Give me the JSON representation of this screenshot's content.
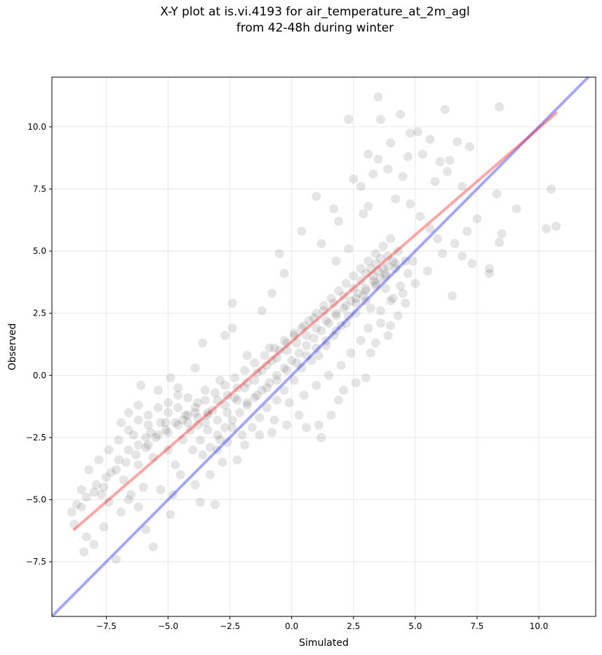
{
  "chart_data": {
    "type": "scatter",
    "title_lines": [
      "X-Y plot at is.vi.4193 for air_temperature_at_2m_agl",
      "from 42-48h during winter"
    ],
    "xlabel": "Simulated",
    "ylabel": "Observed",
    "xlim": [
      -9.7,
      12.3
    ],
    "ylim": [
      -9.7,
      12.0
    ],
    "x_ticks": [
      -7.5,
      -5.0,
      -2.5,
      0.0,
      2.5,
      5.0,
      7.5,
      10.0
    ],
    "y_ticks": [
      -7.5,
      -5.0,
      -2.5,
      0.0,
      2.5,
      5.0,
      7.5,
      10.0
    ],
    "x_tick_labels": [
      "−7.5",
      "−5.0",
      "−2.5",
      "0.0",
      "2.5",
      "5.0",
      "7.5",
      "10.0"
    ],
    "y_tick_labels": [
      "−7.5",
      "−5.0",
      "−2.5",
      "0.0",
      "2.5",
      "5.0",
      "7.5",
      "10.0"
    ],
    "grid": true,
    "point_color": "#000000",
    "point_alpha": 0.1,
    "identity_line": {
      "color": "#0000ff",
      "alpha": 0.35,
      "from": [
        -9.7,
        -9.7
      ],
      "to": [
        12.3,
        12.3
      ]
    },
    "fit_line": {
      "color": "#ff0000",
      "alpha": 0.35,
      "from": [
        -8.8,
        -6.2
      ],
      "to": [
        10.7,
        10.55
      ]
    },
    "points": [
      [
        3.5,
        11.2
      ],
      [
        2.3,
        10.3
      ],
      [
        3.6,
        10.3
      ],
      [
        4.4,
        10.5
      ],
      [
        6.2,
        10.7
      ],
      [
        8.4,
        10.8
      ],
      [
        5.1,
        9.8
      ],
      [
        4.8,
        9.75
      ],
      [
        5.6,
        9.5
      ],
      [
        4.0,
        9.35
      ],
      [
        6.7,
        9.4
      ],
      [
        7.2,
        9.2
      ],
      [
        3.1,
        8.9
      ],
      [
        3.5,
        8.7
      ],
      [
        4.7,
        8.8
      ],
      [
        5.3,
        8.9
      ],
      [
        6.0,
        8.6
      ],
      [
        6.3,
        8.2
      ],
      [
        6.4,
        8.65
      ],
      [
        2.5,
        7.9
      ],
      [
        3.3,
        8.1
      ],
      [
        3.9,
        8.3
      ],
      [
        4.5,
        8.0
      ],
      [
        5.8,
        7.8
      ],
      [
        6.9,
        7.6
      ],
      [
        8.3,
        7.3
      ],
      [
        7.5,
        6.3
      ],
      [
        9.1,
        6.7
      ],
      [
        10.5,
        7.5
      ],
      [
        10.3,
        5.9
      ],
      [
        10.7,
        6.0
      ],
      [
        8.5,
        5.7
      ],
      [
        8.4,
        5.35
      ],
      [
        6.6,
        5.3
      ],
      [
        7.1,
        5.8
      ],
      [
        6.9,
        4.8
      ],
      [
        7.3,
        4.5
      ],
      [
        8.0,
        4.3
      ],
      [
        8.0,
        4.1
      ],
      [
        6.5,
        3.2
      ],
      [
        1.0,
        7.2
      ],
      [
        1.9,
        6.2
      ],
      [
        1.7,
        6.7
      ],
      [
        2.8,
        7.6
      ],
      [
        2.9,
        6.5
      ],
      [
        3.1,
        6.8
      ],
      [
        4.2,
        7.1
      ],
      [
        4.8,
        6.9
      ],
      [
        5.2,
        6.4
      ],
      [
        5.6,
        5.9
      ],
      [
        5.9,
        5.5
      ],
      [
        6.1,
        4.9
      ],
      [
        5.5,
        4.2
      ],
      [
        5.0,
        3.7
      ],
      [
        4.5,
        3.3
      ],
      [
        -1.2,
        2.6
      ],
      [
        -2.4,
        2.9
      ],
      [
        -0.5,
        4.9
      ],
      [
        -0.3,
        4.1
      ],
      [
        0.4,
        5.8
      ],
      [
        1.2,
        5.3
      ],
      [
        1.8,
        4.6
      ],
      [
        2.3,
        5.1
      ],
      [
        -0.8,
        3.3
      ],
      [
        -0.9,
        1.1
      ],
      [
        -1.8,
        0.8
      ],
      [
        -2.7,
        1.6
      ],
      [
        -2.4,
        1.9
      ],
      [
        -3.6,
        1.3
      ],
      [
        -3.9,
        0.3
      ],
      [
        -2.9,
        -0.2
      ],
      [
        -3.5,
        -0.6
      ],
      [
        -4.6,
        -0.5
      ],
      [
        -5.4,
        -0.6
      ],
      [
        -4.9,
        -0.1
      ],
      [
        -6.1,
        -0.4
      ],
      [
        -6.2,
        -1.2
      ],
      [
        -6.6,
        -1.5
      ],
      [
        -5.8,
        -2.0
      ],
      [
        -5.1,
        -1.9
      ],
      [
        -4.4,
        -2.6
      ],
      [
        -5.0,
        -3.0
      ],
      [
        -5.9,
        -2.5
      ],
      [
        -6.4,
        -2.4
      ],
      [
        -6.9,
        -1.9
      ],
      [
        -6.2,
        -3.6
      ],
      [
        -5.6,
        -3.3
      ],
      [
        -4.7,
        -3.6
      ],
      [
        -4.5,
        -4.0
      ],
      [
        -5.3,
        -4.6
      ],
      [
        -6.0,
        -4.5
      ],
      [
        -6.8,
        -4.2
      ],
      [
        -7.3,
        -3.9
      ],
      [
        -7.6,
        -4.5
      ],
      [
        -8.0,
        -4.7
      ],
      [
        -8.5,
        -4.6
      ],
      [
        -8.9,
        -5.5
      ],
      [
        -8.5,
        -5.3
      ],
      [
        -8.8,
        -6.0
      ],
      [
        -8.3,
        -6.5
      ],
      [
        -8.4,
        -7.1
      ],
      [
        -8.0,
        -6.8
      ],
      [
        -7.6,
        -6.1
      ],
      [
        -7.1,
        -7.4
      ],
      [
        -5.6,
        -6.9
      ],
      [
        -5.9,
        -6.2
      ],
      [
        -6.9,
        -5.5
      ],
      [
        -6.6,
        -5.0
      ],
      [
        -6.5,
        -4.8
      ],
      [
        -6.2,
        -5.3
      ],
      [
        -7.4,
        -5.1
      ],
      [
        -7.7,
        -4.8
      ],
      [
        -4.9,
        -5.6
      ],
      [
        -4.8,
        -4.8
      ],
      [
        -3.9,
        -4.4
      ],
      [
        -3.3,
        -4.0
      ],
      [
        -3.7,
        -5.1
      ],
      [
        -3.1,
        -5.2
      ],
      [
        -2.8,
        -3.5
      ],
      [
        -2.2,
        -3.4
      ],
      [
        -1.9,
        -2.8
      ],
      [
        -1.3,
        -2.4
      ],
      [
        -0.8,
        -2.3
      ],
      [
        -0.2,
        -2.0
      ],
      [
        0.3,
        -1.6
      ],
      [
        0.6,
        -2.1
      ],
      [
        1.1,
        -2.0
      ],
      [
        1.2,
        -2.5
      ],
      [
        1.6,
        -1.6
      ],
      [
        1.9,
        -1.0
      ],
      [
        2.1,
        -0.6
      ],
      [
        2.6,
        -0.3
      ],
      [
        3.0,
        -0.1
      ],
      [
        3.2,
        0.9
      ],
      [
        3.4,
        1.3
      ],
      [
        3.9,
        1.6
      ],
      [
        3.6,
        2.1
      ],
      [
        4.0,
        2.0
      ],
      [
        4.3,
        2.4
      ],
      [
        4.6,
        2.9
      ],
      [
        4.1,
        3.1
      ],
      [
        3.8,
        3.5
      ],
      [
        3.2,
        2.7
      ],
      [
        2.9,
        3.2
      ],
      [
        2.6,
        2.9
      ],
      [
        2.3,
        2.4
      ],
      [
        2.0,
        2.0
      ],
      [
        1.7,
        1.6
      ],
      [
        1.4,
        1.2
      ],
      [
        1.1,
        0.8
      ],
      [
        0.8,
        0.6
      ],
      [
        0.4,
        0.3
      ],
      [
        0.1,
        -0.2
      ],
      [
        -0.3,
        -0.6
      ],
      [
        -0.6,
        -1.0
      ],
      [
        -1.0,
        -1.3
      ],
      [
        -1.3,
        -1.7
      ],
      [
        -1.6,
        -2.1
      ],
      [
        -2.0,
        -2.4
      ],
      [
        -2.4,
        -2.1
      ],
      [
        -2.9,
        -2.6
      ],
      [
        -3.3,
        -2.9
      ],
      [
        -3.7,
        -2.6
      ],
      [
        -4.1,
        -2.2
      ],
      [
        -4.4,
        -1.8
      ],
      [
        -3.9,
        -1.5
      ],
      [
        -3.5,
        -1.9
      ],
      [
        -3.2,
        -1.4
      ],
      [
        -2.7,
        -1.2
      ],
      [
        -2.3,
        -0.9
      ],
      [
        -1.9,
        -0.5
      ],
      [
        -1.5,
        -0.2
      ],
      [
        -1.2,
        0.2
      ],
      [
        -0.8,
        0.6
      ],
      [
        -0.5,
        1.0
      ],
      [
        -0.2,
        1.3
      ],
      [
        0.1,
        1.6
      ],
      [
        0.4,
        1.9
      ],
      [
        0.7,
        2.2
      ],
      [
        1.0,
        2.5
      ],
      [
        1.3,
        2.8
      ],
      [
        1.6,
        3.1
      ],
      [
        1.9,
        3.4
      ],
      [
        2.2,
        3.7
      ],
      [
        2.5,
        4.0
      ],
      [
        2.8,
        4.3
      ],
      [
        3.1,
        4.6
      ],
      [
        3.4,
        4.9
      ],
      [
        3.7,
        5.2
      ],
      [
        4.0,
        5.5
      ],
      [
        4.3,
        5.0
      ],
      [
        3.9,
        4.4
      ],
      [
        3.5,
        4.2
      ],
      [
        3.3,
        3.8
      ],
      [
        3.0,
        3.5
      ],
      [
        2.7,
        3.3
      ],
      [
        2.4,
        3.0
      ],
      [
        2.1,
        2.7
      ],
      [
        1.8,
        2.4
      ],
      [
        1.5,
        2.1
      ],
      [
        1.2,
        1.8
      ],
      [
        0.9,
        1.5
      ],
      [
        0.6,
        1.2
      ],
      [
        0.3,
        0.9
      ],
      [
        0.0,
        0.6
      ],
      [
        -0.3,
        0.3
      ],
      [
        -0.6,
        0.0
      ],
      [
        -0.9,
        -0.3
      ],
      [
        -1.2,
        -0.6
      ],
      [
        -1.5,
        -0.9
      ],
      [
        -1.8,
        -1.2
      ],
      [
        -2.1,
        -1.5
      ],
      [
        -2.4,
        -1.8
      ],
      [
        -2.7,
        -2.1
      ],
      [
        -3.0,
        -2.4
      ],
      [
        -3.4,
        -2.2
      ],
      [
        -3.8,
        -2.0
      ],
      [
        -4.2,
        -1.6
      ],
      [
        -4.6,
        -1.3
      ],
      [
        -5.0,
        -1.5
      ],
      [
        -5.3,
        -1.9
      ],
      [
        -5.7,
        -2.3
      ],
      [
        -4.0,
        -3.0
      ],
      [
        -3.6,
        -3.2
      ],
      [
        -3.0,
        -3.0
      ],
      [
        -2.6,
        -2.7
      ],
      [
        -0.7,
        -1.8
      ],
      [
        -0.1,
        -1.1
      ],
      [
        0.5,
        -0.8
      ],
      [
        1.0,
        -0.4
      ],
      [
        1.5,
        0.0
      ],
      [
        2.0,
        0.4
      ],
      [
        2.4,
        0.9
      ],
      [
        2.8,
        1.4
      ],
      [
        3.1,
        1.9
      ],
      [
        3.6,
        2.6
      ],
      [
        4.0,
        3.0
      ],
      [
        4.4,
        3.6
      ],
      [
        4.7,
        4.1
      ],
      [
        4.9,
        4.6
      ],
      [
        4.2,
        4.5
      ],
      [
        3.8,
        4.1
      ],
      [
        3.4,
        3.6
      ],
      [
        3.0,
        3.0
      ],
      [
        2.6,
        2.5
      ],
      [
        2.2,
        2.1
      ],
      [
        1.8,
        1.8
      ],
      [
        1.4,
        1.4
      ],
      [
        1.0,
        1.1
      ],
      [
        0.6,
        0.8
      ],
      [
        0.2,
        0.5
      ],
      [
        -0.2,
        0.2
      ],
      [
        -0.6,
        -0.2
      ],
      [
        -1.0,
        -0.5
      ],
      [
        -1.4,
        -0.8
      ],
      [
        -1.8,
        -1.1
      ],
      [
        -2.2,
        -1.0
      ],
      [
        -2.6,
        -1.5
      ],
      [
        -3.0,
        -1.8
      ],
      [
        -3.4,
        -1.5
      ],
      [
        -3.8,
        -1.1
      ],
      [
        -4.2,
        -0.9
      ],
      [
        -4.6,
        -0.8
      ],
      [
        -5.0,
        -1.1
      ],
      [
        -5.4,
        -1.3
      ],
      [
        -5.8,
        -1.6
      ],
      [
        -6.2,
        -1.8
      ],
      [
        -6.6,
        -2.2
      ],
      [
        -7.0,
        -2.6
      ],
      [
        -7.4,
        -3.0
      ],
      [
        -7.8,
        -3.4
      ],
      [
        -8.2,
        -3.8
      ],
      [
        -7.0,
        -3.4
      ],
      [
        -6.6,
        -3.0
      ],
      [
        -6.2,
        -2.8
      ],
      [
        -5.8,
        -2.8
      ],
      [
        -5.4,
        -2.4
      ],
      [
        -5.0,
        -2.3
      ],
      [
        -4.6,
        -2.0
      ],
      [
        -4.2,
        -1.9
      ],
      [
        -3.8,
        -1.7
      ],
      [
        -3.4,
        -1.6
      ],
      [
        -3.0,
        -1.0
      ],
      [
        -2.6,
        -0.8
      ],
      [
        -2.2,
        -0.5
      ],
      [
        -1.8,
        -0.3
      ],
      [
        -1.4,
        0.1
      ],
      [
        -1.0,
        0.4
      ],
      [
        -0.6,
        0.7
      ],
      [
        -0.2,
        1.0
      ],
      [
        0.2,
        1.3
      ],
      [
        0.6,
        1.6
      ],
      [
        1.0,
        1.9
      ],
      [
        1.4,
        2.2
      ],
      [
        1.8,
        2.5
      ],
      [
        2.2,
        2.8
      ],
      [
        2.6,
        3.1
      ],
      [
        3.0,
        3.4
      ],
      [
        3.4,
        3.7
      ],
      [
        3.8,
        4.0
      ],
      [
        4.2,
        4.3
      ],
      [
        4.6,
        4.6
      ],
      [
        3.2,
        4.3
      ],
      [
        3.6,
        4.7
      ],
      [
        3.0,
        4.1
      ],
      [
        2.8,
        3.8
      ],
      [
        2.5,
        3.5
      ],
      [
        2.1,
        3.2
      ],
      [
        1.7,
        2.9
      ],
      [
        1.3,
        2.6
      ],
      [
        0.9,
        2.3
      ],
      [
        0.5,
        2.0
      ],
      [
        0.1,
        1.7
      ],
      [
        -0.3,
        1.4
      ],
      [
        -0.7,
        1.1
      ],
      [
        -1.1,
        0.8
      ],
      [
        -1.5,
        0.5
      ],
      [
        -1.9,
        0.2
      ],
      [
        -2.3,
        -0.1
      ],
      [
        -2.7,
        -0.4
      ],
      [
        -3.1,
        -0.7
      ],
      [
        -3.5,
        -1.0
      ],
      [
        -3.9,
        -1.3
      ],
      [
        -4.3,
        -1.6
      ],
      [
        -4.7,
        -1.9
      ],
      [
        -5.1,
        -2.2
      ],
      [
        -5.5,
        -2.5
      ],
      [
        -5.9,
        -2.9
      ],
      [
        -6.3,
        -3.2
      ],
      [
        -6.7,
        -3.5
      ],
      [
        -7.1,
        -3.8
      ],
      [
        -7.5,
        -4.1
      ],
      [
        -7.9,
        -4.4
      ],
      [
        -8.3,
        -4.9
      ],
      [
        -8.7,
        -5.2
      ],
      [
        3.4,
        4.5
      ],
      [
        3.7,
        4.3
      ],
      [
        3.9,
        4.8
      ],
      [
        3.3,
        4.0
      ],
      [
        3.6,
        3.9
      ],
      [
        4.1,
        4.6
      ]
    ]
  }
}
